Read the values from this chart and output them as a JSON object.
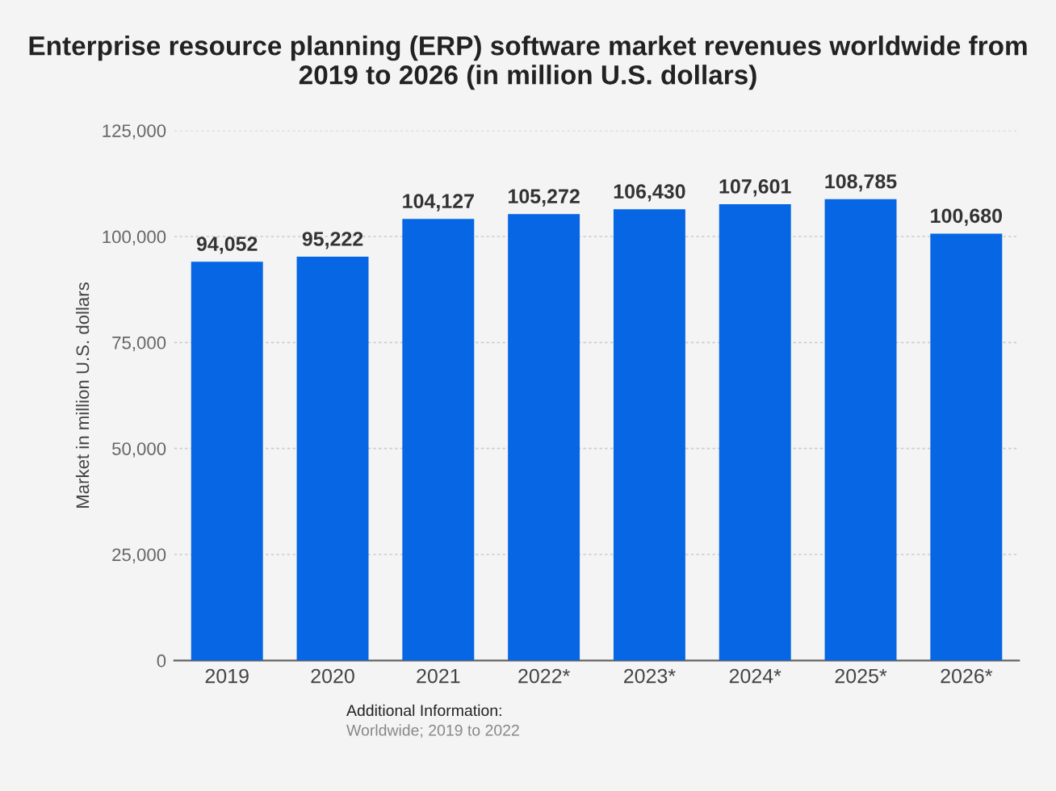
{
  "chart_data": {
    "type": "bar",
    "title": "Enterprise resource planning (ERP) software market revenues worldwide from 2019 to 2026 (in million U.S. dollars)",
    "ylabel": "Market in million U.S. dollars",
    "categories": [
      "2019",
      "2020",
      "2021",
      "2022*",
      "2023*",
      "2024*",
      "2025*",
      "2026*"
    ],
    "values": [
      94052,
      95222,
      104127,
      105272,
      106430,
      107601,
      108785,
      100680
    ],
    "value_labels": [
      "94,052",
      "95,222",
      "104,127",
      "105,272",
      "106,430",
      "107,601",
      "108,785",
      "100,680"
    ],
    "color": "#0766e4",
    "ylim": [
      0,
      125000
    ],
    "yticks": [
      {
        "value": 0,
        "label": "0"
      },
      {
        "value": 25000,
        "label": "25,000"
      },
      {
        "value": 50000,
        "label": "50,000"
      },
      {
        "value": 75000,
        "label": "75,000"
      },
      {
        "value": 100000,
        "label": "100,000"
      },
      {
        "value": 125000,
        "label": "125,000"
      }
    ],
    "grid": "y",
    "annotations": [
      "Additional Information:",
      "Worldwide; 2019 to 2022"
    ]
  }
}
